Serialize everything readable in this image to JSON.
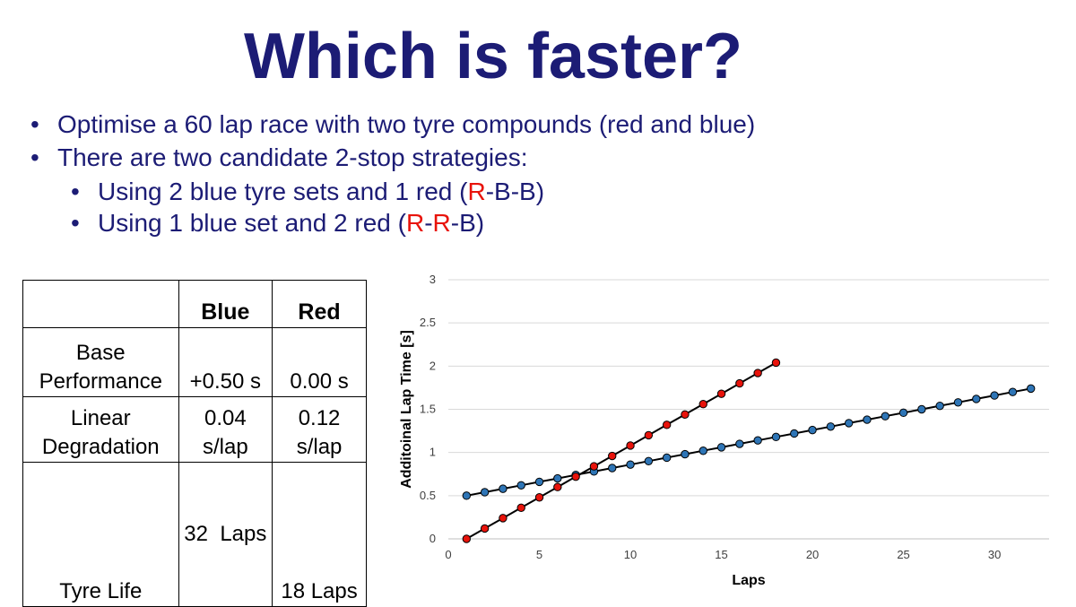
{
  "slide": {
    "title": "Which is faster?",
    "bullets": {
      "b1": "Optimise a 60 lap race with two tyre compounds (red and blue)",
      "b2": "There are two candidate 2-stop strategies:",
      "b3_text": "Using 2 blue tyre sets and 1 red (",
      "b3_r": "R",
      "b3_rest": "-B-B)",
      "b4_text": "Using 1 blue set and 2 red (",
      "b4_r1": "R",
      "b4_dash": "-",
      "b4_r2": "R",
      "b4_rest": "-B)",
      "marker": "•"
    }
  },
  "table": {
    "headers": [
      "",
      "Blue",
      "Red"
    ],
    "rows": [
      {
        "label": [
          "Base",
          "Performance"
        ],
        "blue": [
          "",
          "+0.50 s"
        ],
        "red": [
          "",
          "0.00 s"
        ]
      },
      {
        "label": [
          "Linear",
          "Degradation"
        ],
        "blue": [
          "0.04",
          "s/lap"
        ],
        "red": [
          "0.12",
          "s/lap"
        ]
      },
      {
        "label": [
          "Tyre Life"
        ],
        "blue": [
          "32  Laps"
        ],
        "red": [
          "18 Laps"
        ]
      }
    ]
  },
  "chart_data": {
    "type": "line",
    "xlabel": "Laps",
    "ylabel": "Additoinal Lap Time [s]",
    "xlim": [
      0,
      33
    ],
    "ylim": [
      0,
      3
    ],
    "xticks": [
      0,
      5,
      10,
      15,
      20,
      25,
      30
    ],
    "yticks": [
      0,
      0.5,
      1,
      1.5,
      2,
      2.5,
      3
    ],
    "ytick_labels": [
      "0",
      "0.5",
      "1",
      "1.5",
      "2",
      "2.5",
      "3"
    ],
    "grid": "horizontal",
    "legend": "none",
    "colors": {
      "blue_fill": "#2e75b6",
      "red_fill": "#e8130b",
      "line": "#000000"
    },
    "series": [
      {
        "color": "blue",
        "x": [
          1,
          2,
          3,
          4,
          5,
          6,
          7,
          8,
          9,
          10,
          11,
          12,
          13,
          14,
          15,
          16,
          17,
          18,
          19,
          20,
          21,
          22,
          23,
          24,
          25,
          26,
          27,
          28,
          29,
          30,
          31,
          32
        ],
        "y": [
          0.5,
          0.54,
          0.58,
          0.62,
          0.66,
          0.7,
          0.74,
          0.78,
          0.82,
          0.86,
          0.9,
          0.94,
          0.98,
          1.02,
          1.06,
          1.1,
          1.14,
          1.18,
          1.22,
          1.26,
          1.3,
          1.34,
          1.38,
          1.42,
          1.46,
          1.5,
          1.54,
          1.58,
          1.62,
          1.66,
          1.7,
          1.74
        ]
      },
      {
        "color": "red",
        "x": [
          1,
          2,
          3,
          4,
          5,
          6,
          7,
          8,
          9,
          10,
          11,
          12,
          13,
          14,
          15,
          16,
          17,
          18
        ],
        "y": [
          0.0,
          0.12,
          0.24,
          0.36,
          0.48,
          0.6,
          0.72,
          0.84,
          0.96,
          1.08,
          1.2,
          1.32,
          1.44,
          1.56,
          1.68,
          1.8,
          1.92,
          2.04
        ]
      }
    ]
  }
}
